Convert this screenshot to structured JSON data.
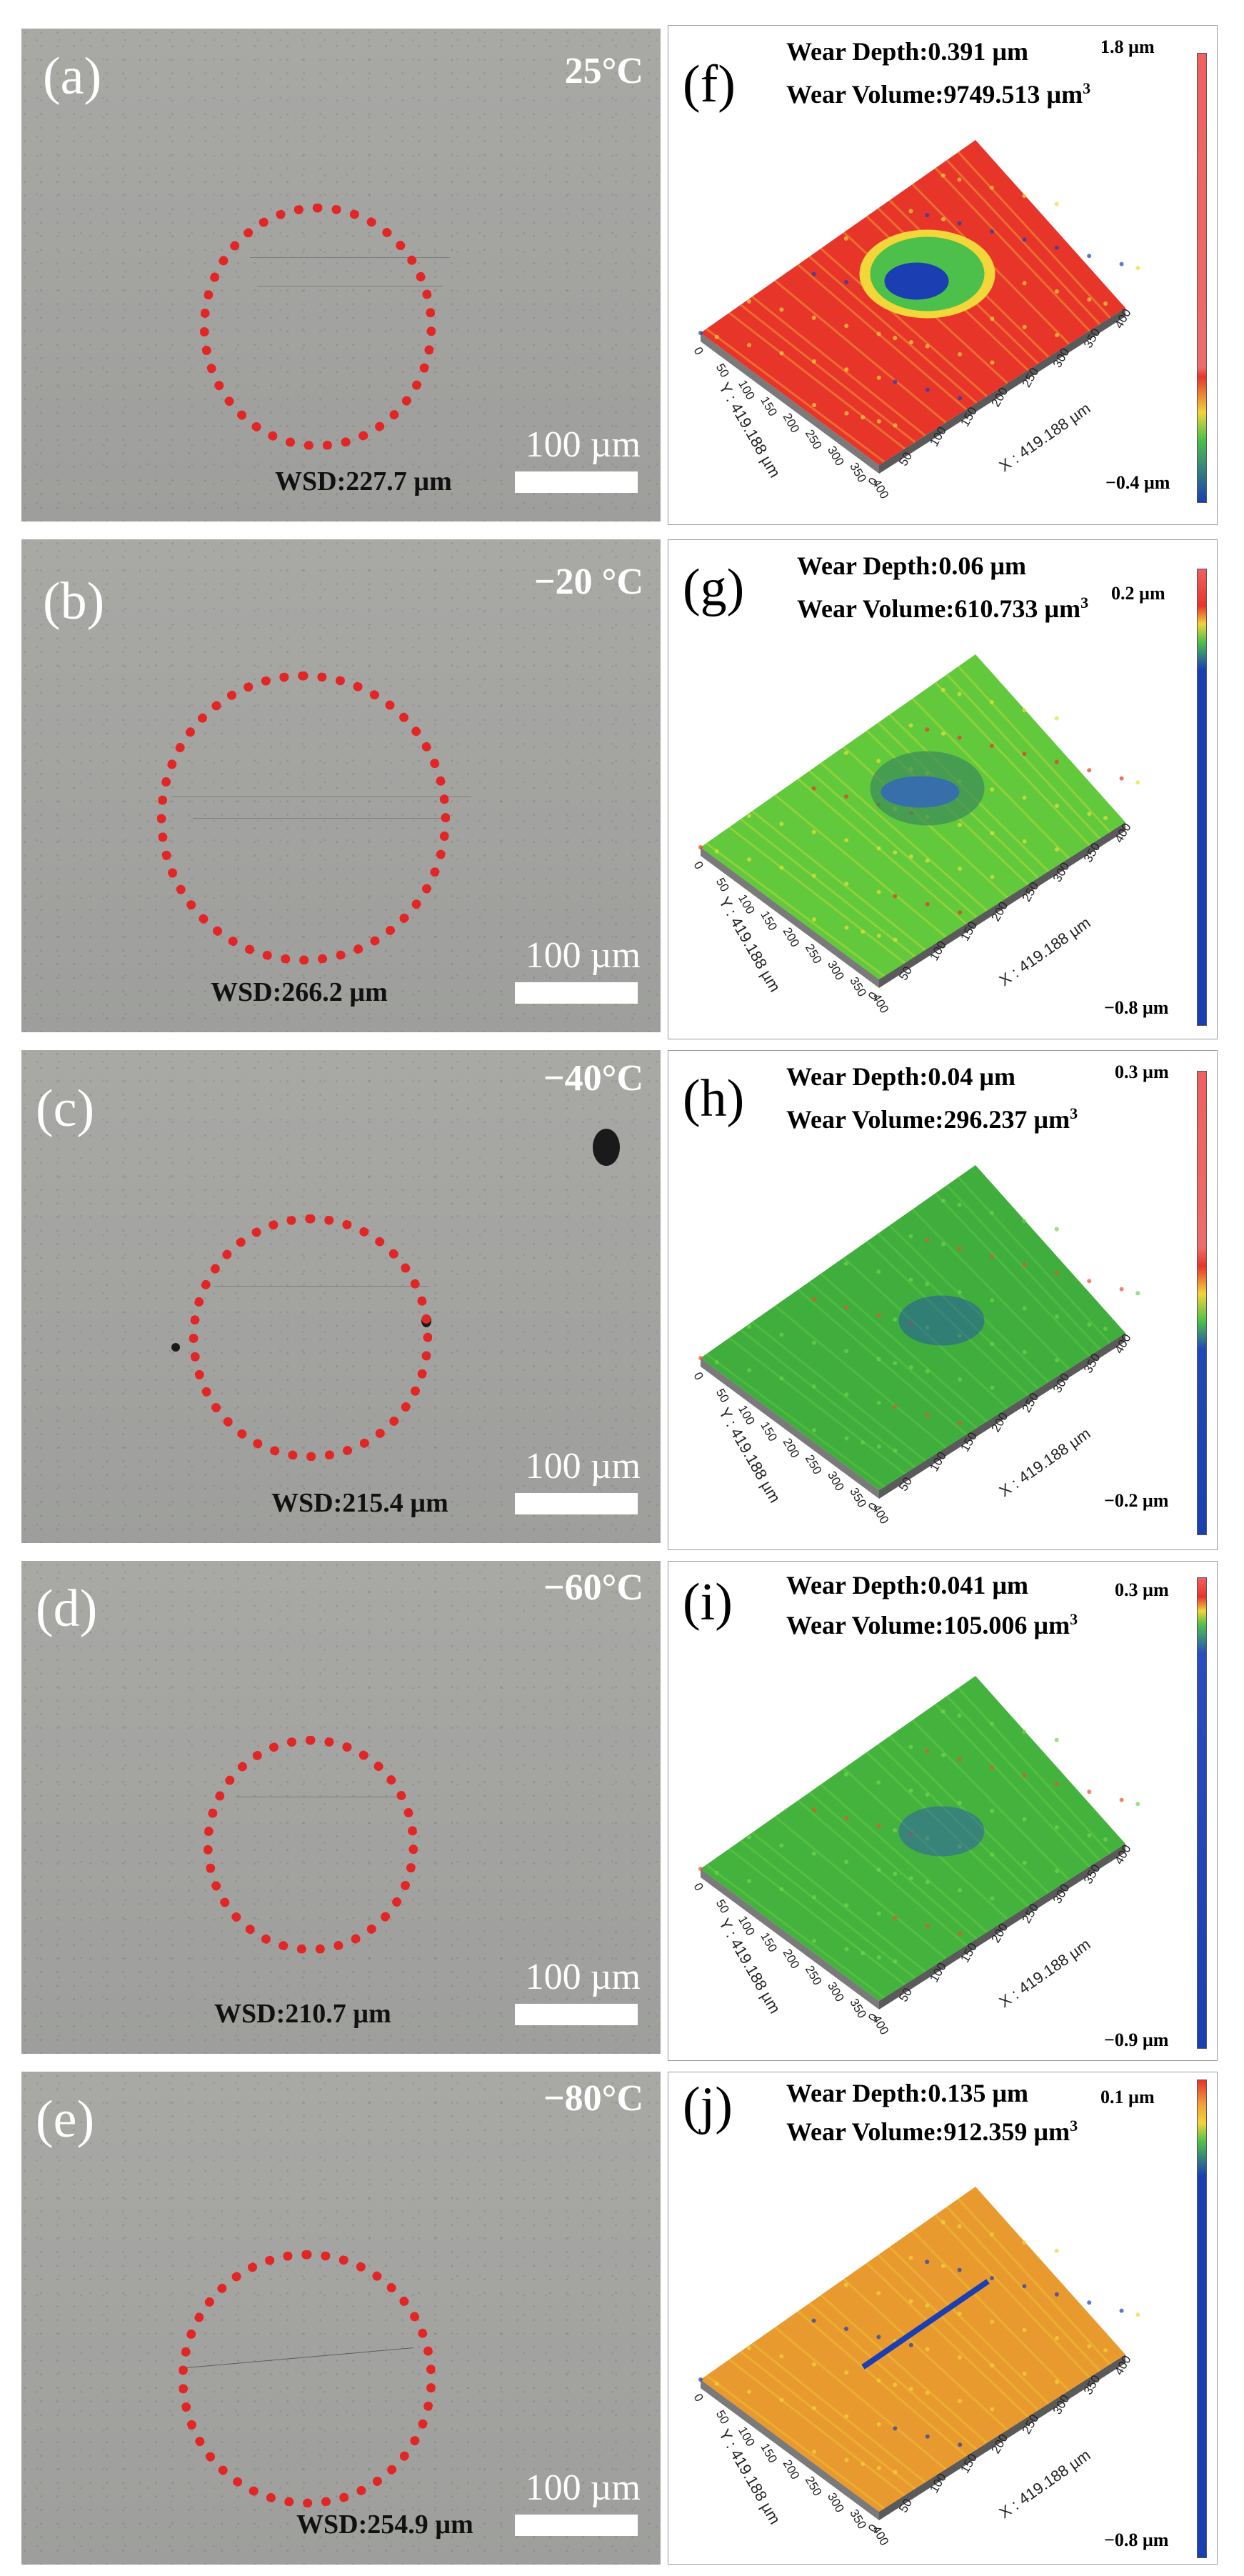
{
  "micrographs": [
    {
      "label": "(a)",
      "temperature": "25°C",
      "scale": "100 µm",
      "wsd": "WSD:227.7 µm"
    },
    {
      "label": "(b)",
      "temperature": "−20 °C",
      "scale": "100 µm",
      "wsd": "WSD:266.2 µm"
    },
    {
      "label": "(c)",
      "temperature": "−40°C",
      "scale": "100 µm",
      "wsd": "WSD:215.4 µm"
    },
    {
      "label": "(d)",
      "temperature": "−60°C",
      "scale": "100 µm",
      "wsd": "WSD:210.7 µm"
    },
    {
      "label": "(e)",
      "temperature": "−80°C",
      "scale": "100 µm",
      "wsd": "WSD:254.9 µm"
    }
  ],
  "topographs": [
    {
      "label": "(f)",
      "wear_depth": "Wear Depth:0.391 µm",
      "wear_volume": "Wear Volume:9749.513 µm",
      "vol_unit_exp": "3",
      "scale_max": "1.8 µm",
      "scale_min": "−0.4 µm",
      "colors": [
        "#e8352a",
        "#f2d63a",
        "#4cc04a",
        "#1b3fb3"
      ]
    },
    {
      "label": "(g)",
      "wear_depth": "Wear Depth:0.06 µm",
      "wear_volume": "Wear Volume:610.733 µm",
      "vol_unit_exp": "3",
      "scale_max": "0.2 µm",
      "scale_min": "−0.8 µm",
      "colors": [
        "#62c93c",
        "#e0e23a",
        "#2f5bd0",
        "#e8352a"
      ]
    },
    {
      "label": "(h)",
      "wear_depth": "Wear Depth:0.04 µm",
      "wear_volume": "Wear Volume:296.237 µm",
      "vol_unit_exp": "3",
      "scale_max": "0.3 µm",
      "scale_min": "−0.2 µm",
      "colors": [
        "#3fae3d",
        "#6fd14a",
        "#2147b8",
        "#e8552a"
      ]
    },
    {
      "label": "(i)",
      "wear_depth": "Wear Depth:0.041 µm",
      "wear_volume": "Wear Volume:105.006 µm",
      "vol_unit_exp": "3",
      "scale_max": "0.3 µm",
      "scale_min": "−0.9 µm",
      "colors": [
        "#44b33d",
        "#72d64a",
        "#2a4cc2",
        "#e8552a"
      ]
    },
    {
      "label": "(j)",
      "wear_depth": "Wear Depth:0.135 µm",
      "wear_volume": "Wear Volume:912.359 µm",
      "vol_unit_exp": "3",
      "scale_max": "0.1 µm",
      "scale_min": "−0.8 µm",
      "colors": [
        "#e99a2e",
        "#f0d43a",
        "#66c93f",
        "#1b3fb3"
      ]
    }
  ],
  "axes": {
    "x_label": "X : 419.188 µm",
    "y_label": "Y : 419.188 µm",
    "ticks": [
      "0",
      "50",
      "100",
      "150",
      "200",
      "250",
      "300",
      "350",
      "400"
    ]
  }
}
